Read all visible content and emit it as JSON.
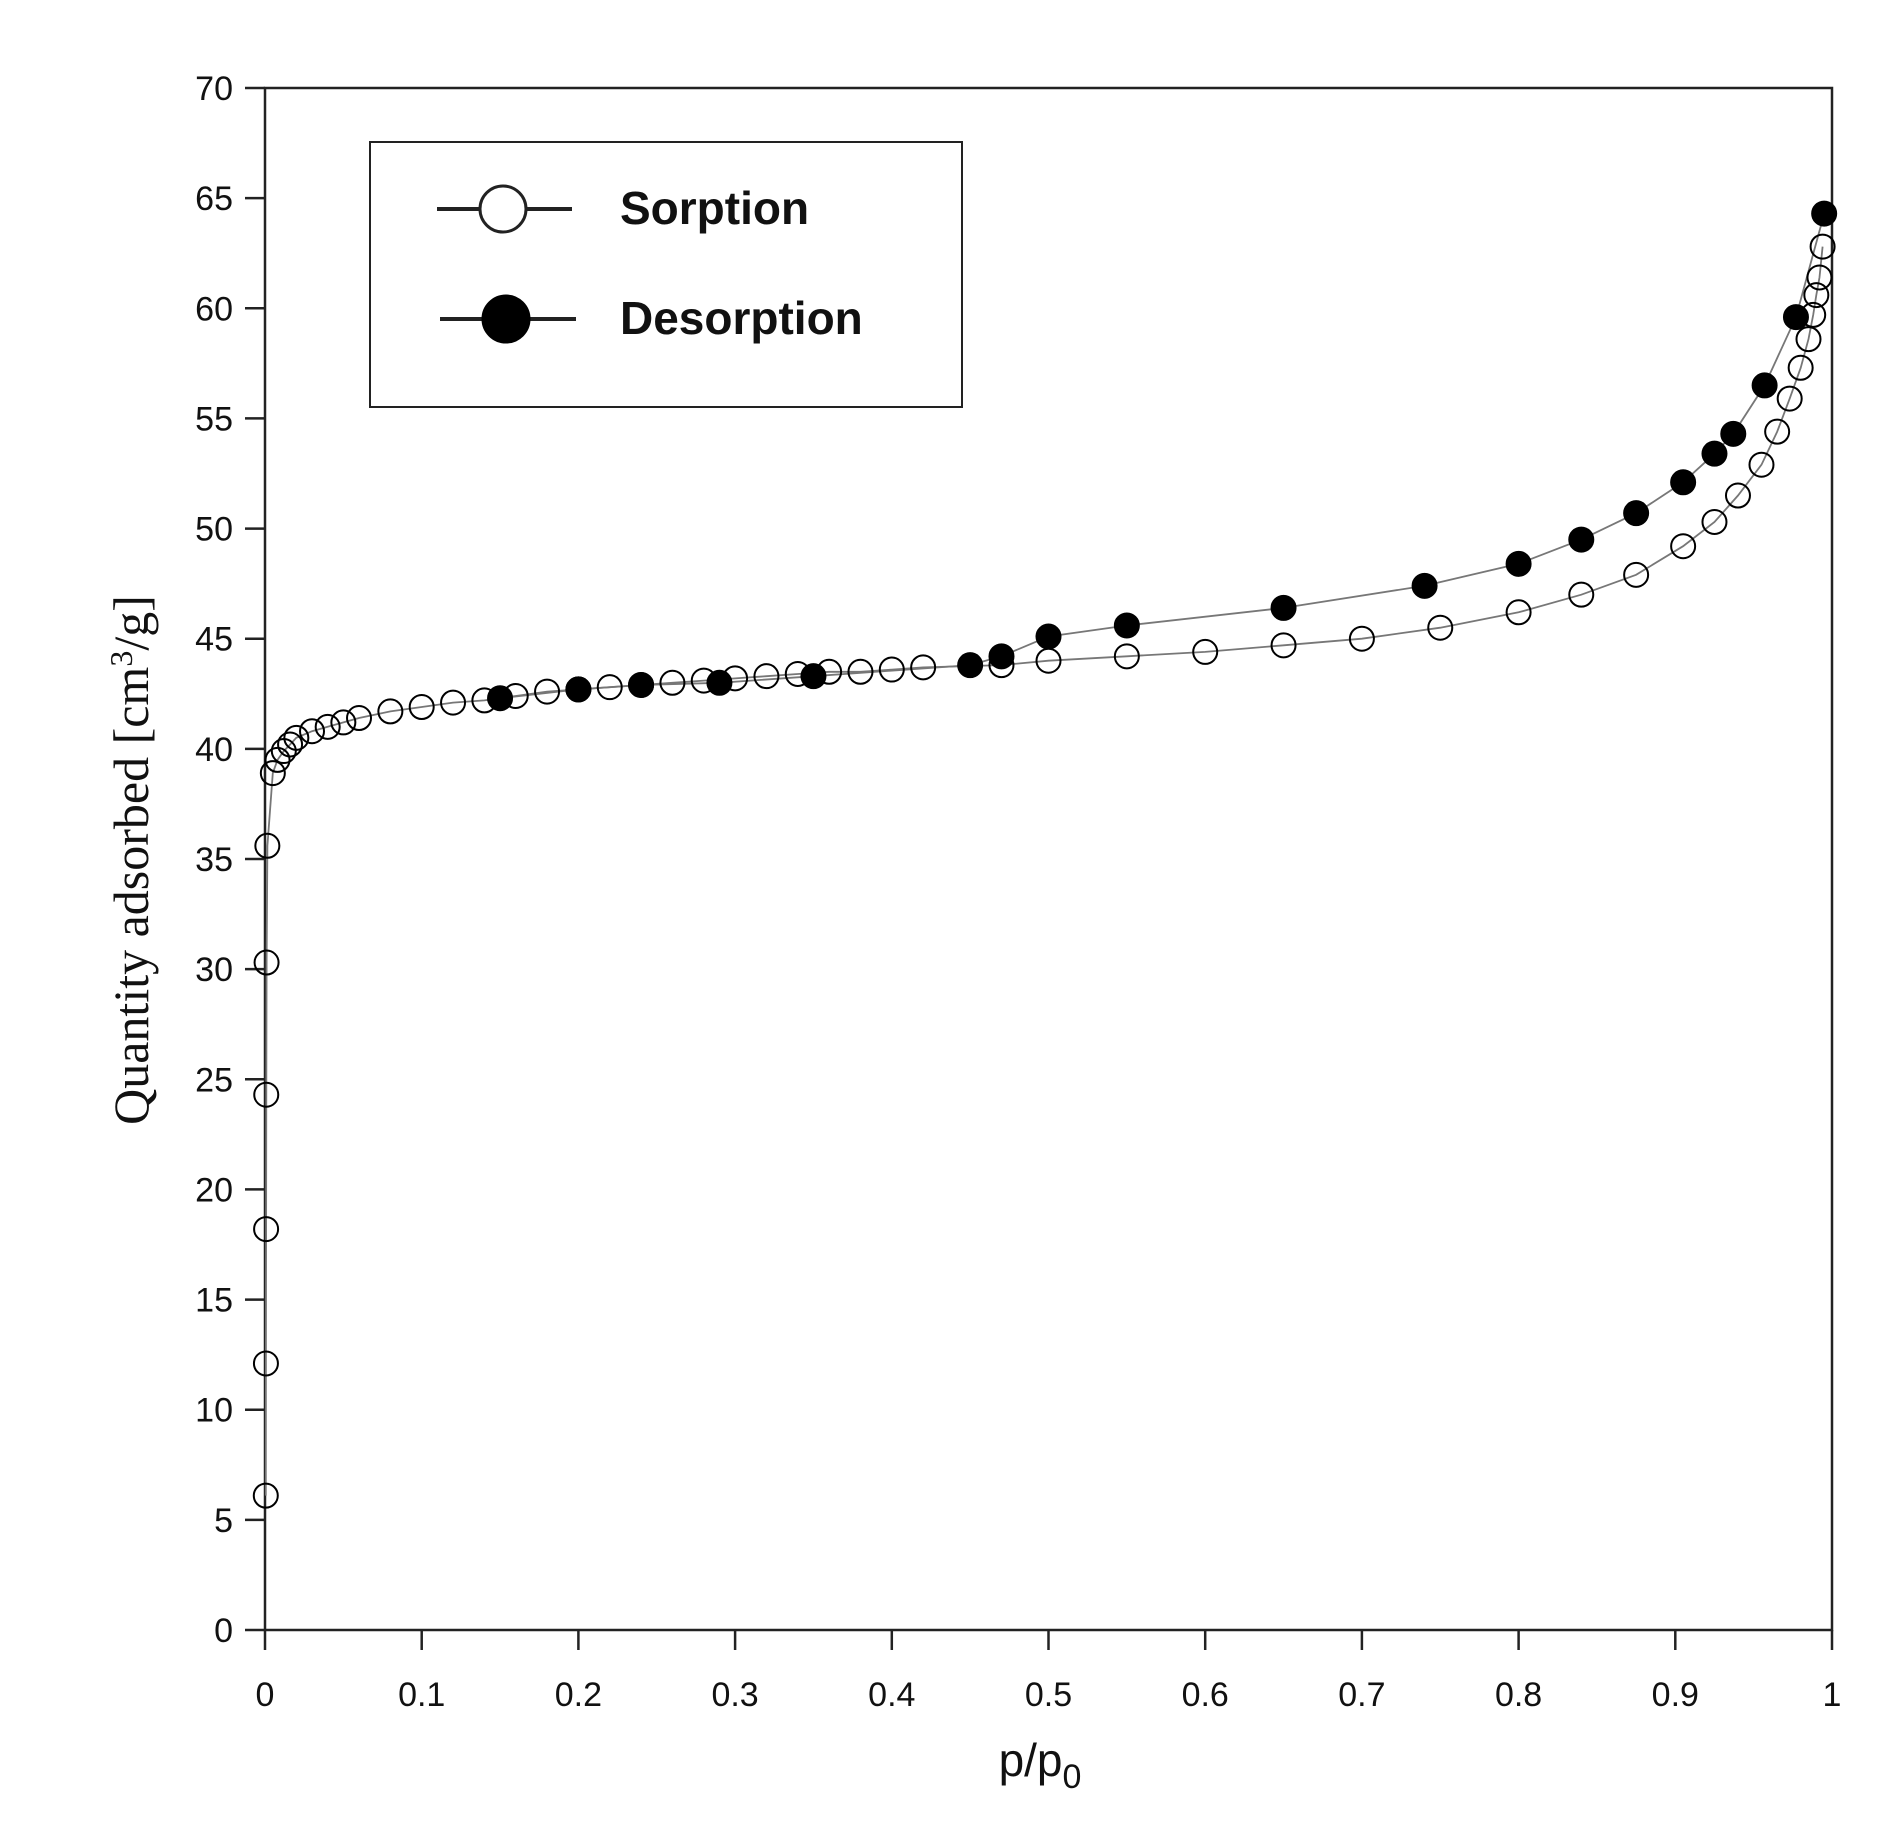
{
  "chart_data": {
    "type": "scatter",
    "xlabel": {
      "base": "p/p",
      "sub": "0"
    },
    "ylabel": {
      "text": "Quantity adsorbed [cm",
      "sup": "3",
      "tail": "/g]"
    },
    "xlim": [
      0,
      1
    ],
    "ylim": [
      0,
      70
    ],
    "xticks": [
      "0",
      "0.1",
      "0.2",
      "0.3",
      "0.4",
      "0.5",
      "0.6",
      "0.7",
      "0.8",
      "0.9",
      "1"
    ],
    "xtick_values": [
      0,
      0.1,
      0.2,
      0.3,
      0.4,
      0.5,
      0.6,
      0.7,
      0.8,
      0.9,
      1.0
    ],
    "yticks": [
      "0",
      "5",
      "10",
      "15",
      "20",
      "25",
      "30",
      "35",
      "40",
      "45",
      "50",
      "55",
      "60",
      "65",
      "70"
    ],
    "ytick_values": [
      0,
      5,
      10,
      15,
      20,
      25,
      30,
      35,
      40,
      45,
      50,
      55,
      60,
      65,
      70
    ],
    "grid": false,
    "legend_position": "top-left",
    "colors": {
      "line": "#777777",
      "marker_stroke": "#000000",
      "filled": "#000000",
      "open": "#ffffff"
    },
    "series": [
      {
        "name": "Sorption",
        "marker": "open-circle",
        "x": [
          0.0005,
          0.0006,
          0.0007,
          0.0008,
          0.001,
          0.0015,
          0.005,
          0.008,
          0.012,
          0.016,
          0.02,
          0.03,
          0.04,
          0.05,
          0.06,
          0.08,
          0.1,
          0.12,
          0.14,
          0.16,
          0.18,
          0.2,
          0.22,
          0.24,
          0.26,
          0.28,
          0.3,
          0.32,
          0.34,
          0.36,
          0.38,
          0.4,
          0.42,
          0.47,
          0.5,
          0.55,
          0.6,
          0.65,
          0.7,
          0.75,
          0.8,
          0.84,
          0.875,
          0.905,
          0.925,
          0.94,
          0.955,
          0.965,
          0.973,
          0.98,
          0.985,
          0.988,
          0.99,
          0.992,
          0.994
        ],
        "y": [
          6.1,
          12.1,
          18.2,
          24.3,
          30.3,
          35.6,
          38.9,
          39.5,
          39.9,
          40.2,
          40.5,
          40.8,
          41.0,
          41.2,
          41.4,
          41.7,
          41.9,
          42.1,
          42.2,
          42.4,
          42.6,
          42.7,
          42.8,
          42.9,
          43.0,
          43.1,
          43.2,
          43.3,
          43.4,
          43.5,
          43.5,
          43.6,
          43.7,
          43.8,
          44.0,
          44.2,
          44.4,
          44.7,
          45.0,
          45.5,
          46.2,
          47.0,
          47.9,
          49.2,
          50.3,
          51.5,
          52.9,
          54.4,
          55.9,
          57.3,
          58.6,
          59.7,
          60.6,
          61.4,
          62.8
        ]
      },
      {
        "name": "Desorption",
        "marker": "filled-circle",
        "x": [
          0.15,
          0.2,
          0.24,
          0.29,
          0.35,
          0.45,
          0.47,
          0.5,
          0.55,
          0.65,
          0.74,
          0.8,
          0.84,
          0.875,
          0.905,
          0.925,
          0.937,
          0.957,
          0.977,
          0.995
        ],
        "y": [
          42.3,
          42.7,
          42.9,
          43.0,
          43.3,
          43.8,
          44.2,
          45.1,
          45.6,
          46.4,
          47.4,
          48.4,
          49.5,
          50.7,
          52.1,
          53.4,
          54.3,
          56.5,
          59.6,
          64.3
        ]
      }
    ]
  }
}
